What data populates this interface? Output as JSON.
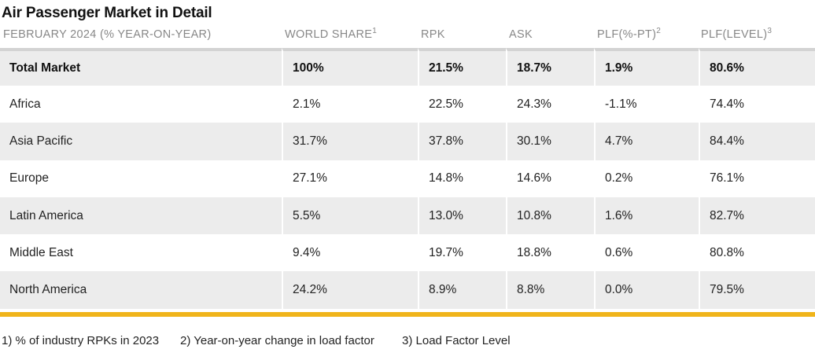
{
  "title": "Air Passenger Market in Detail",
  "headers": {
    "period": "FEBRUARY 2024 (% YEAR-ON-YEAR)",
    "world_share": "WORLD SHARE",
    "world_share_sup": "1",
    "rpk": "RPK",
    "ask": "ASK",
    "plf_pt": "PLF(%-PT)",
    "plf_pt_sup": "2",
    "plf_level": "PLF(LEVEL)",
    "plf_level_sup": "3"
  },
  "rows": [
    {
      "region": "Total Market",
      "world_share": "100%",
      "rpk": "21.5%",
      "ask": "18.7%",
      "plf_pt": "1.9%",
      "plf_level": "80.6%"
    },
    {
      "region": "Africa",
      "world_share": "2.1%",
      "rpk": "22.5%",
      "ask": "24.3%",
      "plf_pt": "-1.1%",
      "plf_level": "74.4%"
    },
    {
      "region": "Asia Pacific",
      "world_share": "31.7%",
      "rpk": "37.8%",
      "ask": "30.1%",
      "plf_pt": "4.7%",
      "plf_level": "84.4%"
    },
    {
      "region": "Europe",
      "world_share": "27.1%",
      "rpk": "14.8%",
      "ask": "14.6%",
      "plf_pt": "0.2%",
      "plf_level": "76.1%"
    },
    {
      "region": "Latin America",
      "world_share": "5.5%",
      "rpk": "13.0%",
      "ask": "10.8%",
      "plf_pt": "1.6%",
      "plf_level": "82.7%"
    },
    {
      "region": "Middle East",
      "world_share": "9.4%",
      "rpk": "19.7%",
      "ask": "18.8%",
      "plf_pt": "0.6%",
      "plf_level": "80.8%"
    },
    {
      "region": "North America",
      "world_share": "24.2%",
      "rpk": "8.9%",
      "ask": "8.8%",
      "plf_pt": "0.0%",
      "plf_level": "79.5%"
    }
  ],
  "footnotes": [
    "1) % of industry RPKs in 2023",
    "2) Year-on-year change in load factor",
    "3) Load Factor Level"
  ],
  "colors": {
    "row_shade": "#ececec",
    "accent_line": "#f0b41a",
    "header_text": "#888888"
  }
}
